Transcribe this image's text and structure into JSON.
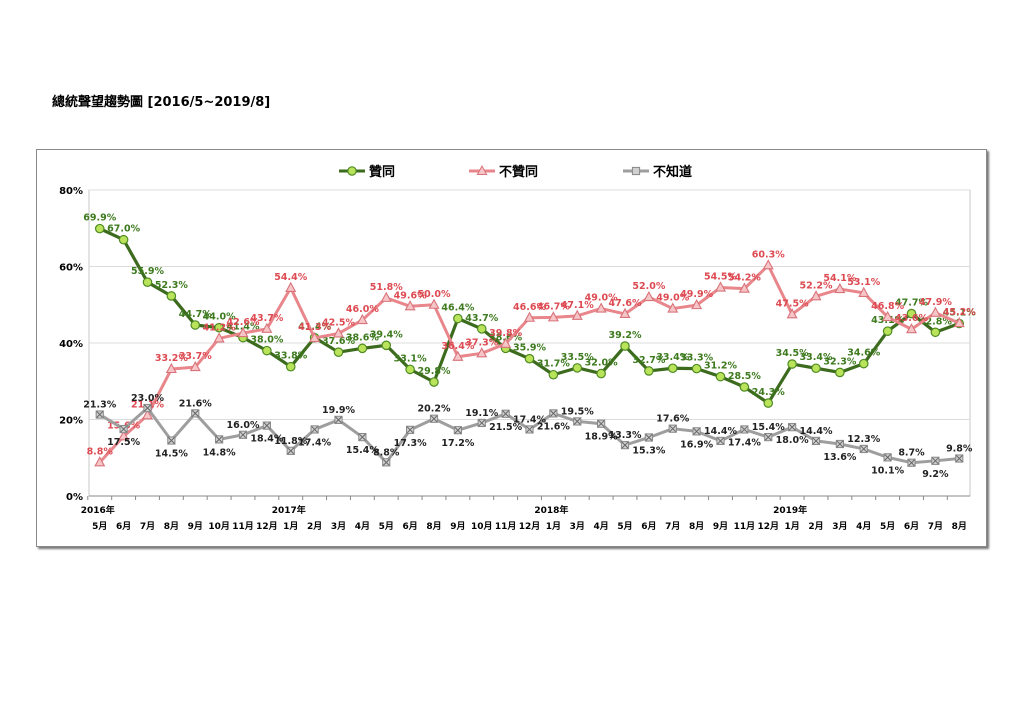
{
  "title": "總統聲望趨勢圖  [2016/5~2019/8]",
  "chart_data": {
    "type": "line",
    "ylim": [
      0,
      80
    ],
    "yticks": [
      "0%",
      "20%",
      "40%",
      "60%",
      "80%"
    ],
    "grid": true,
    "legend_position": "top",
    "categories": [
      "5月",
      "6月",
      "7月",
      "8月",
      "9月",
      "10月",
      "11月",
      "12月",
      "1月",
      "2月",
      "3月",
      "4月",
      "5月",
      "6月",
      "8月",
      "9月",
      "10月",
      "11月",
      "12月",
      "1月",
      "3月",
      "4月",
      "5月",
      "6月",
      "7月",
      "8月",
      "9月",
      "11月",
      "12月",
      "1月",
      "2月",
      "3月",
      "4月",
      "5月",
      "6月",
      "7月",
      "8月"
    ],
    "year_labels": [
      {
        "index": 0,
        "label": "2016年"
      },
      {
        "index": 8,
        "label": "2017年"
      },
      {
        "index": 19,
        "label": "2018年"
      },
      {
        "index": 29,
        "label": "2019年"
      }
    ],
    "series": [
      {
        "name": "贊同",
        "color": "#3d6b1e",
        "marker_color": "#b9e35a",
        "label_color": "#3d7a1e",
        "marker": "circle",
        "values": [
          69.9,
          67.0,
          55.9,
          52.3,
          44.7,
          44.0,
          41.4,
          38.0,
          33.8,
          41.4,
          37.6,
          38.6,
          39.4,
          33.1,
          29.8,
          46.4,
          43.7,
          38.6,
          35.9,
          31.7,
          33.5,
          32.0,
          39.2,
          32.7,
          33.4,
          33.3,
          31.2,
          28.5,
          24.3,
          34.5,
          33.4,
          32.3,
          34.6,
          43.1,
          47.7,
          42.8,
          45.1
        ],
        "labels": [
          "69.9%",
          "67.0%",
          "55.9%",
          "52.3%",
          "44.7%",
          "44.0%",
          "41.4%",
          "38.0%",
          "33.8%",
          "41.4%",
          "37.6%",
          "38.6%",
          "39.4%",
          "33.1%",
          "29.8%",
          "46.4%",
          "43.7%",
          "38.6%",
          "35.9%",
          "31.7%",
          "33.5%",
          "32.0%",
          "39.2%",
          "32.7%",
          "33.4%",
          "33.3%",
          "31.2%",
          "28.5%",
          "24.3%",
          "34.5%",
          "33.4%",
          "32.3%",
          "34.6%",
          "43.1%",
          "47.7%",
          "42.8%",
          "45.1%"
        ]
      },
      {
        "name": "不贊同",
        "color": "#e8868b",
        "marker_color": "#f6c5c7",
        "label_color": "#dd4a52",
        "marker": "triangle",
        "values": [
          8.8,
          15.6,
          21.1,
          33.2,
          33.7,
          41.2,
          42.6,
          43.7,
          54.4,
          41.3,
          42.5,
          46.0,
          51.8,
          49.6,
          50.0,
          36.4,
          37.3,
          39.8,
          46.6,
          46.7,
          47.1,
          49.0,
          47.6,
          52.0,
          49.0,
          49.9,
          54.5,
          54.2,
          60.3,
          47.5,
          52.2,
          54.1,
          53.1,
          46.8,
          43.6,
          47.9,
          45.2
        ],
        "labels": [
          "8.8%",
          "15.6%",
          "21.1%",
          "33.2%",
          "33.7%",
          "41.2%",
          "42.6%",
          "43.7%",
          "54.4%",
          "41.3%",
          "42.5%",
          "46.0%",
          "51.8%",
          "49.6%",
          "50.0%",
          "36.4%",
          "37.3%",
          "39.8%",
          "46.6%",
          "46.7%",
          "47.1%",
          "49.0%",
          "47.6%",
          "52.0%",
          "49.0%",
          "49.9%",
          "54.5%",
          "54.2%",
          "60.3%",
          "47.5%",
          "52.2%",
          "54.1%",
          "53.1%",
          "46.8%",
          "43.6%",
          "47.9%",
          "45.2%"
        ]
      },
      {
        "name": "不知道",
        "color": "#9e9e9e",
        "marker_color": "#d0d0d0",
        "label_color": "#222222",
        "marker": "xsquare",
        "values": [
          21.3,
          17.5,
          23.0,
          14.5,
          21.6,
          14.8,
          16.0,
          18.4,
          11.8,
          17.4,
          19.9,
          15.4,
          8.8,
          17.3,
          20.2,
          17.2,
          19.1,
          21.5,
          17.4,
          21.6,
          19.5,
          18.9,
          13.3,
          15.3,
          17.6,
          16.9,
          14.4,
          17.4,
          15.4,
          18.0,
          14.4,
          13.6,
          12.3,
          10.1,
          8.7,
          9.2,
          9.8
        ],
        "labels": [
          "21.3%",
          "17.5%",
          "23.0%",
          "14.5%",
          "21.6%",
          "14.8%",
          "16.0%",
          "18.4%",
          "11.8%",
          "17.4%",
          "19.9%",
          "15.4%",
          "8.8%",
          "17.3%",
          "20.2%",
          "17.2%",
          "19.1%",
          "21.5%",
          "17.4%",
          "21.6%",
          "19.5%",
          "18.9%",
          "13.3%",
          "15.3%",
          "17.6%",
          "16.9%",
          "14.4%",
          "17.4%",
          "15.4%",
          "18.0%",
          "14.4%",
          "13.6%",
          "12.3%",
          "10.1%",
          "8.7%",
          "9.2%",
          "9.8%"
        ]
      }
    ]
  }
}
